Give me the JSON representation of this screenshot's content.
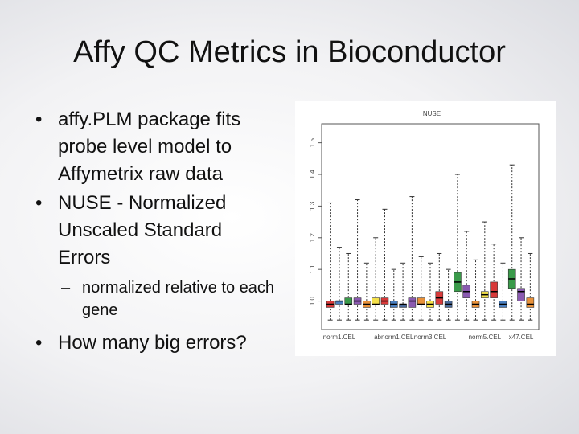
{
  "slide": {
    "title": "Affy QC Metrics in Bioconductor",
    "bullets": [
      "affy.PLM package fits probe level model to Affymetrix raw data",
      "NUSE - Normalized Unscaled Standard Errors"
    ],
    "sub_bullet": "normalized relative to each gene",
    "final_bullet": "How many big errors?"
  },
  "chart_data": {
    "type": "box",
    "title": "NUSE",
    "categories": [
      null,
      "norm1.CEL",
      null,
      null,
      null,
      null,
      null,
      "abnorm1.CEL",
      null,
      null,
      null,
      "norm3.CEL",
      null,
      null,
      null,
      null,
      null,
      "norm5.CEL",
      null,
      null,
      null,
      "x47.CEL",
      null
    ],
    "low": [
      0.94,
      0.94,
      0.94,
      0.94,
      0.94,
      0.94,
      0.94,
      0.94,
      0.94,
      0.94,
      0.94,
      0.94,
      0.94,
      0.94,
      0.94,
      0.94,
      0.94,
      0.94,
      0.94,
      0.94,
      0.94,
      0.94,
      0.94
    ],
    "q1": [
      0.98,
      0.99,
      0.99,
      0.99,
      0.98,
      0.99,
      0.99,
      0.98,
      0.98,
      0.98,
      0.99,
      0.98,
      0.99,
      0.98,
      1.03,
      1.01,
      0.98,
      1.01,
      1.01,
      0.98,
      1.04,
      1.0,
      0.98
    ],
    "median": [
      0.99,
      1.0,
      0.99,
      1.0,
      0.99,
      0.99,
      1.0,
      0.99,
      0.99,
      1.0,
      0.99,
      0.99,
      1.01,
      0.99,
      1.06,
      1.03,
      0.99,
      1.02,
      1.03,
      0.99,
      1.07,
      1.03,
      0.99
    ],
    "q3": [
      1.0,
      1.0,
      1.01,
      1.01,
      1.0,
      1.01,
      1.01,
      1.0,
      0.99,
      1.01,
      1.01,
      1.0,
      1.03,
      1.0,
      1.09,
      1.05,
      1.0,
      1.03,
      1.06,
      1.0,
      1.1,
      1.04,
      1.01
    ],
    "high": [
      1.31,
      1.17,
      1.15,
      1.32,
      1.12,
      1.2,
      1.29,
      1.1,
      1.12,
      1.33,
      1.14,
      1.12,
      1.15,
      1.1,
      1.4,
      1.22,
      1.13,
      1.25,
      1.18,
      1.12,
      1.43,
      1.2,
      1.15
    ],
    "colors": [
      "#d83a3a",
      "#4a7fc0",
      "#3a9a4a",
      "#8a5ab0",
      "#e8913a",
      "#f4e04a",
      "#d83a3a",
      "#4a7fc0",
      "#4a6a9a",
      "#8a5ab0",
      "#e8913a",
      "#f4e04a",
      "#d83a3a",
      "#4a6a9a",
      "#3a9a4a",
      "#8a5ab0",
      "#e8913a",
      "#f4e04a",
      "#d83a3a",
      "#4a7fc0",
      "#3a9a4a",
      "#8a5ab0",
      "#e8913a"
    ],
    "ylim": [
      0.91,
      1.56
    ],
    "yticks": [
      {
        "value": 1,
        "label": "1.0"
      },
      1.1,
      1.2,
      1.3,
      1.4,
      1.5
    ]
  }
}
